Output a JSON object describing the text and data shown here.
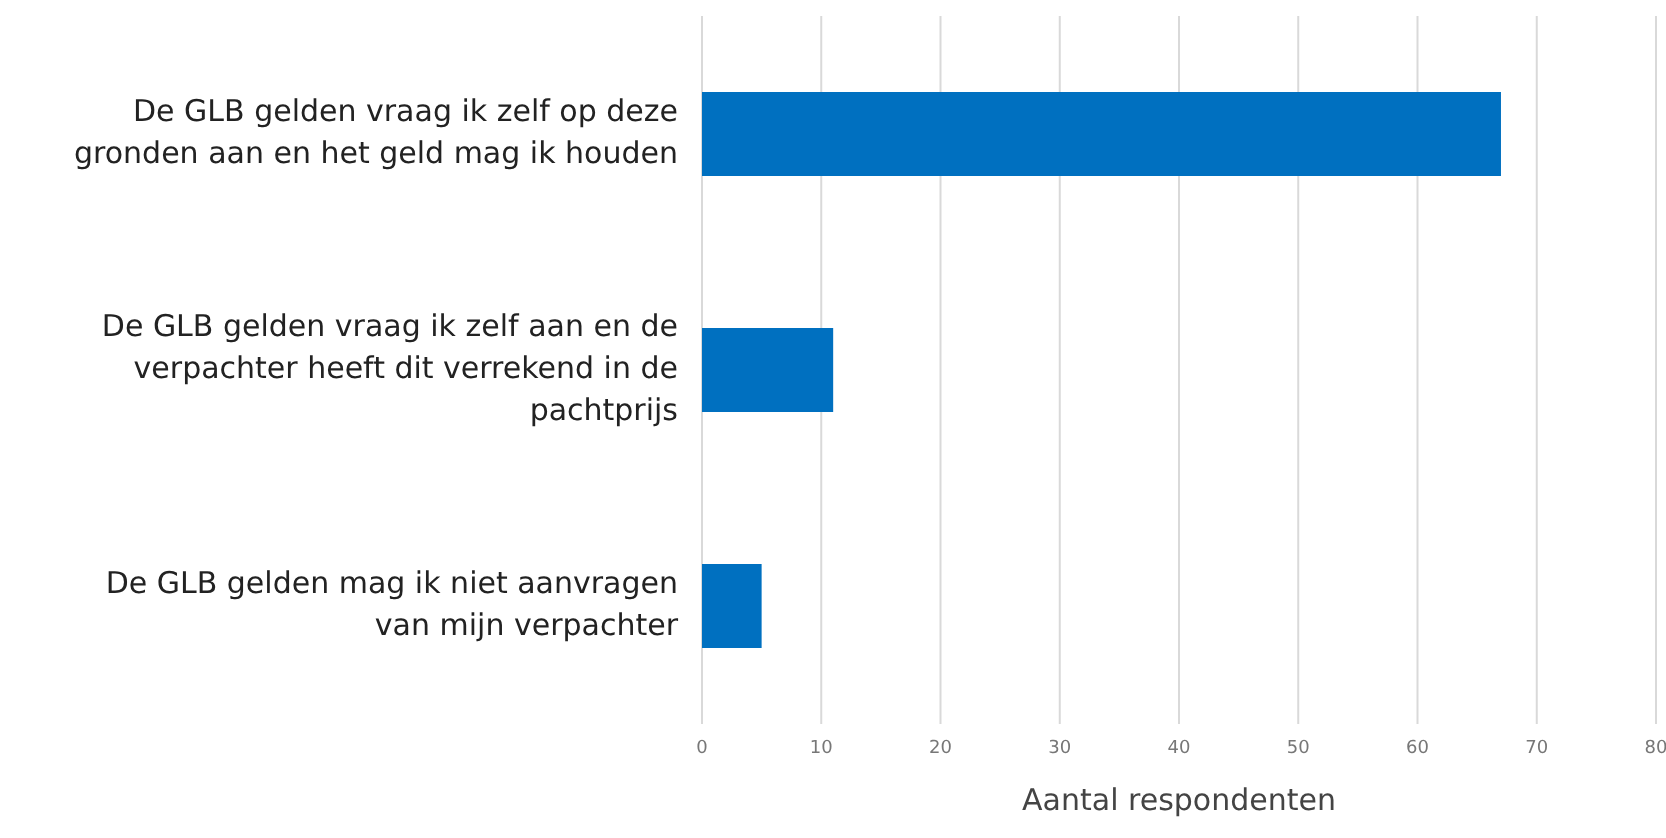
{
  "chart_data": {
    "type": "bar",
    "orientation": "horizontal",
    "categories": [
      "De GLB gelden vraag ik zelf op deze gronden aan en het geld mag ik houden",
      "De GLB gelden vraag ik zelf aan en de verpachter heeft dit verrekend in de pachtprijs",
      "De GLB gelden mag ik niet aanvragen van mijn verpachter"
    ],
    "values": [
      67,
      11,
      5
    ],
    "color": "#0070c0",
    "xlabel": "Aantal respondenten",
    "xlim": [
      0,
      80
    ],
    "xticks": [
      0,
      10,
      20,
      30,
      40,
      50,
      60,
      70,
      80
    ],
    "grid": "x"
  }
}
